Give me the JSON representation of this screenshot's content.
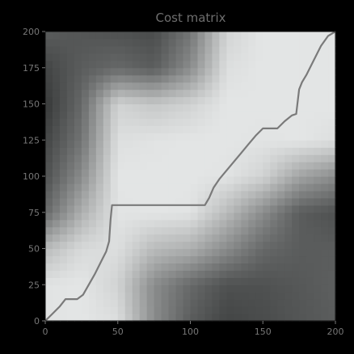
{
  "chart_data": {
    "type": "heatmap",
    "title": "Cost matrix",
    "xlabel": "",
    "ylabel": "",
    "xlim": [
      0,
      200
    ],
    "ylim": [
      0,
      200
    ],
    "x_ticks": [
      0,
      50,
      100,
      150,
      200
    ],
    "y_ticks": [
      0,
      25,
      50,
      75,
      100,
      125,
      150,
      175,
      200
    ],
    "grid": false,
    "colormap": "gray",
    "path_color": "#7a7a7a",
    "background_color": "#000000",
    "warping_path": {
      "x": [
        0,
        5,
        10,
        14,
        18,
        22,
        26,
        30,
        34,
        38,
        42,
        44,
        45,
        46,
        60,
        80,
        100,
        110,
        113,
        116,
        120,
        125,
        130,
        135,
        140,
        145,
        150,
        155,
        158,
        160,
        165,
        170,
        173,
        175,
        177,
        180,
        185,
        190,
        195,
        200
      ],
      "y": [
        0,
        5,
        10,
        15,
        15,
        15,
        18,
        25,
        32,
        40,
        48,
        55,
        70,
        80,
        80,
        80,
        80,
        80,
        85,
        92,
        98,
        104,
        110,
        116,
        122,
        128,
        133,
        133,
        133,
        133,
        138,
        142,
        143,
        160,
        165,
        170,
        180,
        190,
        197,
        200
      ]
    },
    "cost_surface": {
      "note_levels": "brightness 0=black, 1=white",
      "grid_x": [
        0,
        25,
        50,
        75,
        100,
        125,
        150,
        175,
        200
      ],
      "grid_y": [
        0,
        25,
        50,
        75,
        100,
        125,
        150,
        175,
        200
      ],
      "values_by_row_from_y0": [
        [
          0.92,
          0.93,
          0.9,
          0.55,
          0.35,
          0.25,
          0.28,
          0.32,
          0.35
        ],
        [
          0.92,
          0.93,
          0.85,
          0.55,
          0.4,
          0.3,
          0.3,
          0.33,
          0.36
        ],
        [
          0.75,
          0.88,
          0.9,
          0.75,
          0.7,
          0.55,
          0.4,
          0.35,
          0.35
        ],
        [
          0.4,
          0.7,
          0.92,
          0.93,
          0.92,
          0.75,
          0.55,
          0.35,
          0.3
        ],
        [
          0.3,
          0.55,
          0.93,
          0.93,
          0.93,
          0.92,
          0.85,
          0.65,
          0.55
        ],
        [
          0.25,
          0.45,
          0.9,
          0.92,
          0.93,
          0.93,
          0.92,
          0.93,
          0.9
        ],
        [
          0.2,
          0.4,
          0.85,
          0.8,
          0.85,
          0.93,
          0.93,
          0.93,
          0.93
        ],
        [
          0.25,
          0.35,
          0.4,
          0.35,
          0.55,
          0.9,
          0.93,
          0.93,
          0.93
        ],
        [
          0.35,
          0.32,
          0.3,
          0.28,
          0.45,
          0.85,
          0.93,
          0.93,
          0.93
        ]
      ]
    }
  }
}
